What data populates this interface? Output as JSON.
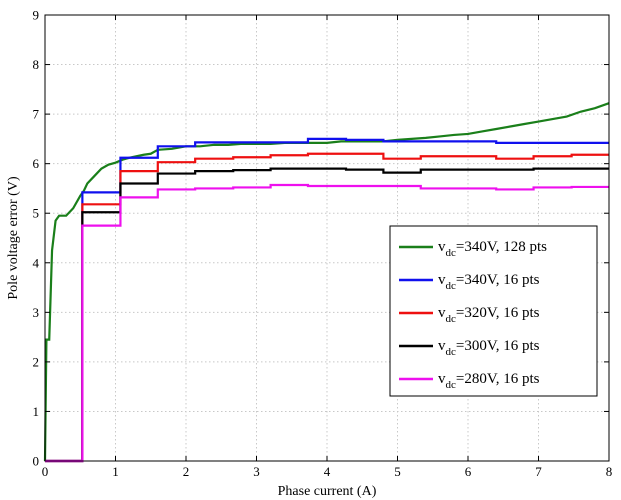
{
  "chart_data": {
    "type": "line",
    "xlabel": "Phase current (A)",
    "ylabel": "Pole voltage error (V)",
    "xlim": [
      0,
      8
    ],
    "ylim": [
      0,
      9
    ],
    "xticks": [
      "0",
      "1",
      "2",
      "3",
      "4",
      "5",
      "6",
      "7",
      "8"
    ],
    "yticks": [
      "0",
      "1",
      "2",
      "3",
      "4",
      "5",
      "6",
      "7",
      "8",
      "9"
    ],
    "grid": true,
    "legend_position": "lower-right",
    "series": [
      {
        "name_prefix": "v",
        "name_sub": "dc",
        "name_suffix": "=340V, 128 pts",
        "color": "#1a7f1a",
        "step": false,
        "x": [
          0,
          0.02,
          0.06,
          0.1,
          0.15,
          0.2,
          0.3,
          0.4,
          0.5,
          0.55,
          0.6,
          0.7,
          0.8,
          0.9,
          1.0,
          1.1,
          1.2,
          1.3,
          1.4,
          1.5,
          1.6,
          1.8,
          2.0,
          2.2,
          2.4,
          2.6,
          2.8,
          3.0,
          3.2,
          3.4,
          3.6,
          3.8,
          4.0,
          4.2,
          4.4,
          4.6,
          4.8,
          5.0,
          5.2,
          5.4,
          5.6,
          5.8,
          6.0,
          6.2,
          6.4,
          6.6,
          6.8,
          7.0,
          7.2,
          7.4,
          7.6,
          7.8,
          8.0
        ],
        "y": [
          0,
          2.45,
          2.45,
          4.25,
          4.85,
          4.95,
          4.95,
          5.1,
          5.35,
          5.45,
          5.6,
          5.75,
          5.9,
          5.98,
          6.02,
          6.08,
          6.12,
          6.15,
          6.18,
          6.2,
          6.28,
          6.3,
          6.35,
          6.35,
          6.38,
          6.38,
          6.4,
          6.4,
          6.4,
          6.42,
          6.42,
          6.42,
          6.42,
          6.45,
          6.45,
          6.45,
          6.45,
          6.48,
          6.5,
          6.52,
          6.55,
          6.58,
          6.6,
          6.65,
          6.7,
          6.75,
          6.8,
          6.85,
          6.9,
          6.95,
          7.05,
          7.12,
          7.22
        ]
      },
      {
        "name_prefix": "v",
        "name_sub": "dc",
        "name_suffix": "=340V, 16 pts",
        "color": "#1010ee",
        "step": true,
        "x": [
          0,
          0.53,
          0.53,
          1.07,
          1.07,
          1.6,
          1.6,
          2.13,
          2.13,
          2.67,
          2.67,
          3.2,
          3.2,
          3.73,
          3.73,
          4.27,
          4.27,
          4.8,
          4.8,
          5.33,
          5.33,
          5.87,
          5.87,
          6.4,
          6.4,
          6.93,
          6.93,
          7.47,
          7.47,
          8.0
        ],
        "y": [
          0,
          0,
          5.42,
          5.42,
          6.12,
          6.12,
          6.35,
          6.35,
          6.43,
          6.43,
          6.43,
          6.43,
          6.43,
          6.43,
          6.5,
          6.5,
          6.48,
          6.48,
          6.45,
          6.45,
          6.45,
          6.45,
          6.45,
          6.45,
          6.42,
          6.42,
          6.42,
          6.42,
          6.42,
          6.42
        ]
      },
      {
        "name_prefix": "v",
        "name_sub": "dc",
        "name_suffix": "=320V, 16 pts",
        "color": "#ee1010",
        "step": true,
        "x": [
          0,
          0.53,
          0.53,
          1.07,
          1.07,
          1.6,
          1.6,
          2.13,
          2.13,
          2.67,
          2.67,
          3.2,
          3.2,
          3.73,
          3.73,
          4.27,
          4.27,
          4.8,
          4.8,
          5.33,
          5.33,
          5.87,
          5.87,
          6.4,
          6.4,
          6.93,
          6.93,
          7.47,
          7.47,
          8.0
        ],
        "y": [
          0,
          0,
          5.18,
          5.18,
          5.85,
          5.85,
          6.03,
          6.03,
          6.1,
          6.1,
          6.13,
          6.13,
          6.17,
          6.17,
          6.2,
          6.2,
          6.2,
          6.2,
          6.1,
          6.1,
          6.15,
          6.15,
          6.15,
          6.15,
          6.1,
          6.1,
          6.15,
          6.15,
          6.18,
          6.18
        ]
      },
      {
        "name_prefix": "v",
        "name_sub": "dc",
        "name_suffix": "=300V, 16 pts",
        "color": "#000000",
        "step": true,
        "x": [
          0,
          0.53,
          0.53,
          1.07,
          1.07,
          1.6,
          1.6,
          2.13,
          2.13,
          2.67,
          2.67,
          3.2,
          3.2,
          3.73,
          3.73,
          4.27,
          4.27,
          4.8,
          4.8,
          5.33,
          5.33,
          5.87,
          5.87,
          6.4,
          6.4,
          6.93,
          6.93,
          7.47,
          7.47,
          8.0
        ],
        "y": [
          0,
          0,
          5.02,
          5.02,
          5.6,
          5.6,
          5.8,
          5.8,
          5.85,
          5.85,
          5.87,
          5.87,
          5.9,
          5.9,
          5.9,
          5.9,
          5.88,
          5.88,
          5.82,
          5.82,
          5.88,
          5.88,
          5.88,
          5.88,
          5.88,
          5.88,
          5.9,
          5.9,
          5.9,
          5.9
        ]
      },
      {
        "name_prefix": "v",
        "name_sub": "dc",
        "name_suffix": "=280V, 16 pts",
        "color": "#ee10ee",
        "step": true,
        "x": [
          0,
          0.53,
          0.53,
          1.07,
          1.07,
          1.6,
          1.6,
          2.13,
          2.13,
          2.67,
          2.67,
          3.2,
          3.2,
          3.73,
          3.73,
          4.27,
          4.27,
          4.8,
          4.8,
          5.33,
          5.33,
          5.87,
          5.87,
          6.4,
          6.4,
          6.93,
          6.93,
          7.47,
          7.47,
          8.0
        ],
        "y": [
          0,
          0,
          4.75,
          4.75,
          5.32,
          5.32,
          5.48,
          5.48,
          5.5,
          5.5,
          5.52,
          5.52,
          5.57,
          5.57,
          5.55,
          5.55,
          5.55,
          5.55,
          5.55,
          5.55,
          5.5,
          5.5,
          5.5,
          5.5,
          5.48,
          5.48,
          5.52,
          5.52,
          5.53,
          5.53
        ]
      }
    ]
  }
}
